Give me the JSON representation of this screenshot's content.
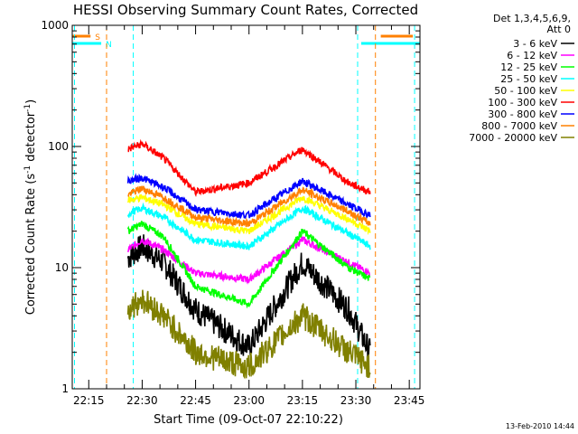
{
  "chart_data": {
    "type": "line",
    "title": "HESSI Observing Summary Count Rates, Corrected",
    "xlabel": "Start Time (09-Oct-07 22:10:22)",
    "ylabel_main": "Corrected Count Rate (s",
    "ylabel_sup1": "-1",
    "ylabel_mid": " detector",
    "ylabel_sup2": "-1",
    "ylabel_end": ")",
    "y_scale": "log",
    "ylim": [
      1,
      1000
    ],
    "xlim": [
      "22:10:22",
      "23:48:00"
    ],
    "x_ticks": [
      "22:15",
      "22:30",
      "22:45",
      "23:00",
      "23:15",
      "23:30",
      "23:45"
    ],
    "y_ticks": [
      "1",
      "10",
      "100",
      "1000"
    ],
    "legend_header": [
      "Det 1,3,4,5,6,9,",
      "Att 0"
    ],
    "legend_placement": "right",
    "series": [
      {
        "name": "3 - 6 keV",
        "color": "#000000",
        "times": [
          "22:26",
          "22:30",
          "22:36",
          "22:45",
          "23:00",
          "23:15",
          "23:28",
          "23:34"
        ],
        "values": [
          12,
          15,
          11,
          4.5,
          2.2,
          11,
          4.5,
          2
        ]
      },
      {
        "name": "6 - 12 keV",
        "color": "#ff00ff",
        "times": [
          "22:26",
          "22:30",
          "22:36",
          "22:45",
          "23:00",
          "23:15",
          "23:28",
          "23:34"
        ],
        "values": [
          14,
          17,
          14,
          9,
          8,
          17,
          11,
          9
        ]
      },
      {
        "name": "12 - 25 keV",
        "color": "#00ff00",
        "times": [
          "22:26",
          "22:30",
          "22:36",
          "22:45",
          "23:00",
          "23:15",
          "23:28",
          "23:34"
        ],
        "values": [
          20,
          23,
          18,
          7,
          5,
          20,
          10,
          8
        ]
      },
      {
        "name": "25 - 50 keV",
        "color": "#00ffff",
        "times": [
          "22:26",
          "22:30",
          "22:36",
          "22:45",
          "23:00",
          "23:15",
          "23:28",
          "23:34"
        ],
        "values": [
          28,
          31,
          26,
          17,
          15,
          31,
          19,
          15
        ]
      },
      {
        "name": "50 - 100 keV",
        "color": "#ffff00",
        "times": [
          "22:26",
          "22:30",
          "22:36",
          "22:45",
          "23:00",
          "23:15",
          "23:28",
          "23:34"
        ],
        "values": [
          36,
          38,
          33,
          23,
          20,
          38,
          25,
          20
        ]
      },
      {
        "name": "100 - 300 keV",
        "color": "#ff0000",
        "times": [
          "22:26",
          "22:30",
          "22:36",
          "22:45",
          "23:00",
          "23:15",
          "23:28",
          "23:34"
        ],
        "values": [
          95,
          105,
          80,
          42,
          50,
          95,
          50,
          42
        ]
      },
      {
        "name": "300 - 800 keV",
        "color": "#0000ff",
        "times": [
          "22:26",
          "22:30",
          "22:36",
          "22:45",
          "23:00",
          "23:15",
          "23:28",
          "23:34"
        ],
        "values": [
          52,
          55,
          46,
          30,
          27,
          52,
          33,
          27
        ]
      },
      {
        "name": "800 - 7000 keV",
        "color": "#ff8000",
        "times": [
          "22:26",
          "22:30",
          "22:36",
          "22:45",
          "23:00",
          "23:15",
          "23:28",
          "23:34"
        ],
        "values": [
          40,
          45,
          38,
          26,
          23,
          44,
          29,
          23
        ]
      },
      {
        "name": "7000 - 20000 keV",
        "color": "#808000",
        "times": [
          "22:26",
          "22:30",
          "22:36",
          "22:45",
          "23:00",
          "23:15",
          "23:28",
          "23:34"
        ],
        "values": [
          4.5,
          5.5,
          4,
          2,
          1.5,
          4,
          2,
          1.5
        ]
      }
    ],
    "flag_bars": [
      {
        "label": "S",
        "color": "#ff8000",
        "segments": [
          [
            "22:10:22",
            "22:15:30"
          ],
          [
            "23:37:00",
            "23:46:00"
          ]
        ]
      },
      {
        "label": "N",
        "color": "#00ffff",
        "segments": [
          [
            "22:10:22",
            "22:18:30"
          ],
          [
            "23:31:30",
            "23:48:00"
          ]
        ]
      }
    ],
    "vlines": [
      {
        "time": "22:11:00",
        "color": "#00ffff"
      },
      {
        "time": "22:20:00",
        "color": "#ff8000"
      },
      {
        "time": "22:27:30",
        "color": "#00ffff"
      },
      {
        "time": "23:30:30",
        "color": "#00ffff"
      },
      {
        "time": "23:35:30",
        "color": "#ff8000"
      },
      {
        "time": "23:46:30",
        "color": "#00ffff"
      }
    ],
    "footer_date": "13-Feb-2010 14:44"
  }
}
